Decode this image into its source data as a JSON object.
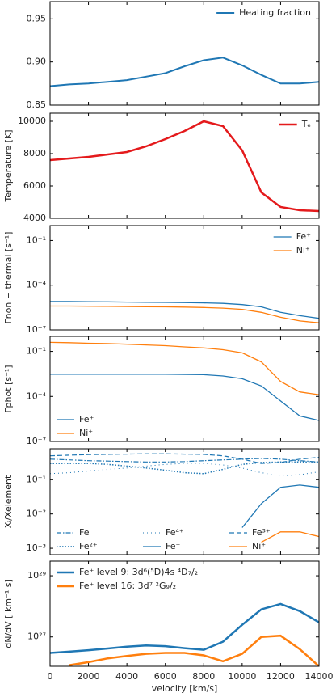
{
  "chart_data": [
    {
      "type": "line",
      "x": [
        0,
        1000,
        2000,
        3000,
        4000,
        5000,
        6000,
        7000,
        8000,
        9000,
        10000,
        11000,
        12000,
        13000,
        14000
      ],
      "xlim": [
        0,
        14000
      ],
      "ylim": [
        0.85,
        0.97
      ],
      "yticks": [
        {
          "value": 0.85,
          "label": "0.85"
        },
        {
          "value": 0.9,
          "label": "0.90"
        },
        {
          "value": 0.95,
          "label": "0.95"
        }
      ],
      "legend": "upper right",
      "series": [
        {
          "name": "Heating fraction",
          "color": "#1f77b4",
          "linestyle": "solid",
          "width": 2,
          "values": [
            0.872,
            0.874,
            0.875,
            0.877,
            0.879,
            0.883,
            0.887,
            0.895,
            0.902,
            0.905,
            0.896,
            0.885,
            0.875,
            0.875,
            0.877
          ]
        }
      ]
    },
    {
      "type": "line",
      "x": [
        0,
        1000,
        2000,
        3000,
        4000,
        5000,
        6000,
        7000,
        8000,
        9000,
        10000,
        11000,
        12000,
        13000,
        14000
      ],
      "xlim": [
        0,
        14000
      ],
      "ylim": [
        4000,
        10500
      ],
      "yticks": [
        4000,
        6000,
        8000,
        10000
      ],
      "ylabel": "Temperature [K]",
      "legend": "upper right",
      "series": [
        {
          "name": "Tₑ",
          "color": "#e41a1c",
          "linestyle": "solid",
          "width": 2.5,
          "values": [
            7600,
            7700,
            7800,
            7950,
            8100,
            8450,
            8900,
            9400,
            10000,
            9700,
            8200,
            5600,
            4700,
            4500,
            4450
          ]
        }
      ]
    },
    {
      "type": "line",
      "x": [
        0,
        1000,
        2000,
        3000,
        4000,
        5000,
        6000,
        7000,
        8000,
        9000,
        10000,
        11000,
        12000,
        13000,
        14000
      ],
      "xlim": [
        0,
        14000
      ],
      "yscale": "log",
      "ylim": [
        1e-07,
        1
      ],
      "yticks": [
        {
          "value": 1e-07,
          "label": "10⁻⁷"
        },
        {
          "value": 0.0001,
          "label": "10⁻⁴"
        },
        {
          "value": 0.1,
          "label": "10⁻¹"
        }
      ],
      "ylabel": "Γnon − thermal [s⁻¹]",
      "legend": "upper right",
      "series": [
        {
          "name": "Fe⁺",
          "color": "#1f77b4",
          "linestyle": "solid",
          "width": 1.3,
          "values": [
            8e-06,
            8e-06,
            7.8e-06,
            7.6e-06,
            7.4e-06,
            7.2e-06,
            7e-06,
            6.8e-06,
            6.5e-06,
            6e-06,
            5e-06,
            3.5e-06,
            1.5e-06,
            9e-07,
            6e-07
          ]
        },
        {
          "name": "Ni⁺",
          "color": "#ff7f0e",
          "linestyle": "solid",
          "width": 1.3,
          "values": [
            4e-06,
            4e-06,
            3.9e-06,
            3.8e-06,
            3.7e-06,
            3.6e-06,
            3.5e-06,
            3.4e-06,
            3.2e-06,
            2.9e-06,
            2.4e-06,
            1.5e-06,
            7e-07,
            4e-07,
            3e-07
          ]
        }
      ]
    },
    {
      "type": "line",
      "x": [
        0,
        1000,
        2000,
        3000,
        4000,
        5000,
        6000,
        7000,
        8000,
        9000,
        10000,
        11000,
        12000,
        13000,
        14000
      ],
      "xlim": [
        0,
        14000
      ],
      "yscale": "log",
      "ylim": [
        1e-07,
        1
      ],
      "yticks": [
        {
          "value": 1e-07,
          "label": "10⁻⁷"
        },
        {
          "value": 0.0001,
          "label": "10⁻⁴"
        },
        {
          "value": 0.1,
          "label": "10⁻¹"
        }
      ],
      "ylabel": "Γphot [s⁻¹]",
      "legend": "lower left",
      "series": [
        {
          "name": "Fe⁺",
          "color": "#1f77b4",
          "linestyle": "solid",
          "width": 1.3,
          "values": [
            0.003,
            0.003,
            0.003,
            0.003,
            0.003,
            0.003,
            0.003,
            0.0029,
            0.0028,
            0.0023,
            0.0015,
            0.0005,
            5e-05,
            5e-06,
            2.5e-06
          ]
        },
        {
          "name": "Ni⁺",
          "color": "#ff7f0e",
          "linestyle": "solid",
          "width": 1.3,
          "values": [
            0.4,
            0.38,
            0.35,
            0.33,
            0.3,
            0.27,
            0.24,
            0.2,
            0.17,
            0.13,
            0.08,
            0.02,
            0.001,
            0.0002,
            0.00013
          ]
        }
      ]
    },
    {
      "type": "line",
      "x": [
        0,
        1000,
        2000,
        3000,
        4000,
        5000,
        6000,
        7000,
        8000,
        9000,
        10000,
        11000,
        12000,
        13000,
        14000
      ],
      "xlim": [
        0,
        14000
      ],
      "yscale": "log",
      "ylim": [
        0.00065,
        0.8
      ],
      "yticks": [
        {
          "value": 0.001,
          "label": "10⁻³"
        },
        {
          "value": 0.01,
          "label": "10⁻²"
        },
        {
          "value": 0.1,
          "label": "10⁻¹"
        }
      ],
      "ylabel": "Xᵢ/Xelement",
      "legend": "lower left",
      "legend_columns": 3,
      "series": [
        {
          "name": "Fe",
          "color": "#1f77b4",
          "linestyle": "dashdot",
          "width": 1.2,
          "values": [
            0.4,
            0.38,
            0.36,
            0.35,
            0.34,
            0.33,
            0.33,
            0.34,
            0.36,
            0.38,
            0.4,
            0.42,
            0.4,
            0.36,
            0.33
          ]
        },
        {
          "name": "Fe²⁺",
          "color": "#1f77b4",
          "linestyle": "dotted",
          "width": 1.5,
          "values": [
            0.3,
            0.3,
            0.3,
            0.28,
            0.25,
            0.22,
            0.19,
            0.16,
            0.15,
            0.2,
            0.28,
            0.32,
            0.33,
            0.33,
            0.33
          ]
        },
        {
          "name": "Fe⁴⁺",
          "color": "#1f77b4",
          "linestyle": "loosely dotted",
          "width": 1,
          "values": [
            0.15,
            0.16,
            0.18,
            0.2,
            0.22,
            0.25,
            0.28,
            0.3,
            0.3,
            0.27,
            0.22,
            0.16,
            0.13,
            0.14,
            0.17
          ]
        },
        {
          "name": "Fe⁺",
          "color": "#1f77b4",
          "linestyle": "solid",
          "width": 1.3,
          "values": [
            null,
            null,
            null,
            null,
            null,
            null,
            null,
            null,
            null,
            null,
            0.004,
            0.02,
            0.06,
            0.07,
            0.06
          ]
        },
        {
          "name": "Fe³⁺",
          "color": "#1f77b4",
          "linestyle": "dashed",
          "width": 1.2,
          "values": [
            0.5,
            0.52,
            0.54,
            0.55,
            0.56,
            0.57,
            0.57,
            0.56,
            0.55,
            0.5,
            0.4,
            0.3,
            0.32,
            0.4,
            0.45
          ]
        },
        {
          "name": "Ni⁺",
          "color": "#ff7f0e",
          "linestyle": "solid",
          "width": 1.3,
          "values": [
            null,
            null,
            null,
            null,
            null,
            null,
            null,
            null,
            null,
            null,
            null,
            0.0015,
            0.003,
            0.003,
            0.0022
          ]
        }
      ]
    },
    {
      "type": "line",
      "x": [
        0,
        1000,
        2000,
        3000,
        4000,
        5000,
        6000,
        7000,
        8000,
        9000,
        10000,
        11000,
        12000,
        13000,
        14000
      ],
      "xlim": [
        0,
        14000
      ],
      "xticks": [
        0,
        2000,
        4000,
        6000,
        8000,
        10000,
        12000,
        14000
      ],
      "xlabel": "velocity [km/s]",
      "yscale": "log",
      "ylim": [
        1.1e+26,
        3e+29
      ],
      "yticks": [
        {
          "value": 1e+27,
          "label": "10²⁷"
        },
        {
          "value": 1e+29,
          "label": "10²⁹"
        }
      ],
      "ylabel": "dN/dV [ km⁻¹ s]",
      "legend": "upper left",
      "series": [
        {
          "name": "Fe⁺ level 9: 3d⁶(⁵D)4s ⁴D₇/₂",
          "color": "#1f77b4",
          "linestyle": "solid",
          "width": 2.5,
          "values": [
            3e+26,
            3.3e+26,
            3.7e+26,
            4.2e+26,
            4.8e+26,
            5.3e+26,
            5e+26,
            4.3e+26,
            3.8e+26,
            7e+26,
            2.5e+27,
            8e+27,
            1.2e+28,
            7e+27,
            3e+27
          ]
        },
        {
          "name": "Fe⁺ level 16: 3d⁷ ²G₉/₂",
          "color": "#ff7f0e",
          "linestyle": "solid",
          "width": 2.5,
          "values": [
            null,
            1.2e+26,
            1.5e+26,
            2e+26,
            2.4e+26,
            2.8e+26,
            3e+26,
            3e+26,
            2.5e+26,
            1.6e+26,
            2.8e+26,
            1e+27,
            1.1e+27,
            4e+26,
            1.1e+26
          ]
        }
      ]
    }
  ]
}
